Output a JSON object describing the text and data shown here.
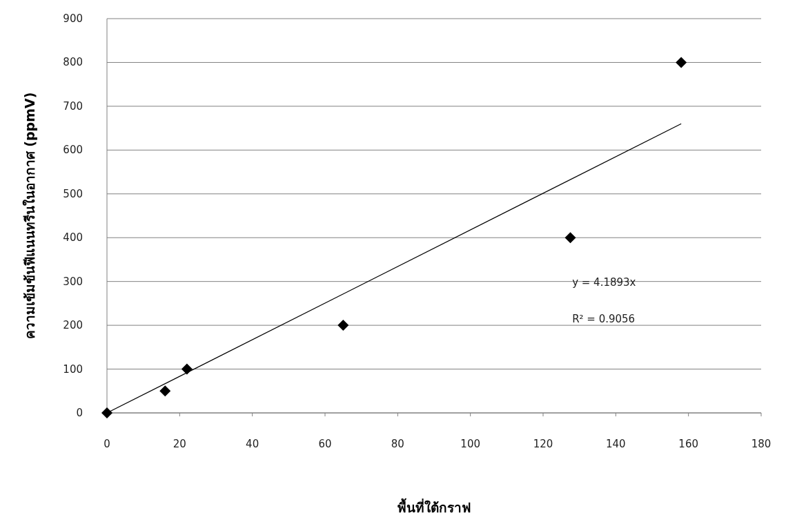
{
  "chart_data": {
    "type": "scatter",
    "xlabel": "พื้นที่ใต้กราฟ",
    "ylabel": "ความเข้มข้นฟีแนนทรีนในอากาศ (ppmV)",
    "series": [
      {
        "type": "scatter",
        "color": "#000000",
        "marker": "diamond",
        "x": [
          0,
          16,
          22,
          65,
          127.5,
          158
        ],
        "values": [
          0,
          50,
          100,
          200,
          400,
          800
        ]
      },
      {
        "type": "line",
        "color": "#000000",
        "marker": "none",
        "x": [
          0,
          158
        ],
        "values": [
          0,
          660
        ]
      }
    ],
    "annotations": [
      "y = 4.1893x",
      "R² = 0.9056"
    ],
    "xlim": [
      0,
      180
    ],
    "xticks": [
      0,
      20,
      40,
      60,
      80,
      100,
      120,
      140,
      160,
      180
    ],
    "ylim": [
      0,
      900
    ],
    "yticks": [
      0,
      100,
      200,
      300,
      400,
      500,
      600,
      700,
      800,
      900
    ],
    "grid": "y"
  }
}
